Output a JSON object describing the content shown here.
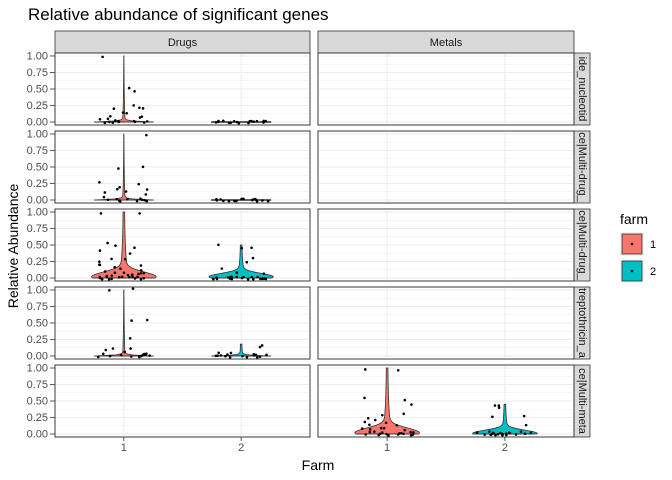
{
  "chart_data": {
    "type": "violin",
    "title": "Relative abundance of significant genes",
    "xlabel": "Farm",
    "ylabel": "Relative Abundance",
    "x_categories": [
      "1",
      "2"
    ],
    "y_ticks": [
      "0.00",
      "0.25",
      "0.50",
      "0.75",
      "1.00"
    ],
    "ylim": [
      0,
      1
    ],
    "columns": [
      "Drugs",
      "Metals"
    ],
    "row_labels": [
      "ide_nucleotid",
      "ce|Multi-drug_",
      "ce|Multi-drug_",
      "treptothricin_a",
      "ce|Multi-meta"
    ],
    "legend": {
      "title": "farm",
      "entries": [
        {
          "label": "1",
          "color": "#F8766D"
        },
        {
          "label": "2",
          "color": "#00BFC4"
        }
      ],
      "position": "right"
    },
    "panels": [
      {
        "row": 0,
        "col": 0,
        "farm1": {
          "points": [
            1.0,
            0.47,
            0.5,
            0.25,
            0.22,
            0.2,
            0.18,
            0.15,
            0.12,
            0.1,
            0.08,
            0.06,
            0.05,
            0.03,
            0.02,
            0.0,
            0.0,
            0.0,
            0.0,
            0.0,
            0.0,
            0.0,
            0.0,
            0.0
          ],
          "median": 0.0,
          "max": 1.0,
          "peak": 0.0,
          "shape": "spike"
        },
        "farm2": {
          "points": [
            0.0,
            0.0,
            0.0,
            0.0,
            0.0,
            0.0,
            0.0,
            0.0,
            0.0,
            0.0,
            0.0,
            0.0,
            0.0,
            0.0,
            0.0,
            0.0,
            0.0,
            0.0
          ],
          "median": 0.0,
          "max": 0.0,
          "peak": 0.0,
          "shape": "flat"
        }
      },
      {
        "row": 1,
        "col": 0,
        "farm1": {
          "points": [
            1.0,
            0.5,
            0.47,
            0.25,
            0.22,
            0.2,
            0.17,
            0.15,
            0.12,
            0.1,
            0.07,
            0.05,
            0.03,
            0.0,
            0.0,
            0.0,
            0.0,
            0.0,
            0.0,
            0.0,
            0.0,
            0.0
          ],
          "median": 0.0,
          "max": 1.0,
          "peak": 0.0,
          "shape": "spike"
        },
        "farm2": {
          "points": [
            0.0,
            0.0,
            0.0,
            0.0,
            0.0,
            0.0,
            0.0,
            0.0,
            0.0,
            0.0,
            0.0,
            0.0,
            0.0,
            0.0,
            0.0,
            0.0,
            0.0,
            0.0
          ],
          "median": 0.0,
          "max": 0.0,
          "peak": 0.0,
          "shape": "flat"
        }
      },
      {
        "row": 2,
        "col": 0,
        "farm1": {
          "points": [
            1.0,
            0.97,
            0.53,
            0.5,
            0.45,
            0.4,
            0.37,
            0.3,
            0.28,
            0.25,
            0.22,
            0.2,
            0.18,
            0.15,
            0.13,
            0.12,
            0.1,
            0.09,
            0.08,
            0.07,
            0.06,
            0.05,
            0.05,
            0.04,
            0.03,
            0.03,
            0.02,
            0.02,
            0.01,
            0.01,
            0.0,
            0.0,
            0.0,
            0.0,
            0.0,
            0.0,
            0.0,
            0.0,
            0.0,
            0.0
          ],
          "median": 0.05,
          "max": 1.0,
          "peak": 0.02,
          "shape": "violin"
        },
        "farm2": {
          "points": [
            0.52,
            0.48,
            0.45,
            0.3,
            0.25,
            0.15,
            0.1,
            0.05,
            0.03,
            0.02,
            0.01,
            0.0,
            0.0,
            0.0,
            0.0,
            0.0,
            0.0,
            0.0,
            0.0,
            0.0,
            0.0,
            0.0,
            0.0,
            0.0,
            0.0,
            0.0,
            0.0,
            0.0,
            0.0,
            0.0
          ],
          "median": 0.01,
          "max": 0.5,
          "peak": 0.02,
          "shape": "violin"
        }
      },
      {
        "row": 3,
        "col": 0,
        "farm1": {
          "points": [
            1.0,
            0.98,
            0.55,
            0.53,
            0.27,
            0.12,
            0.1,
            0.08,
            0.06,
            0.05,
            0.04,
            0.03,
            0.02,
            0.02,
            0.01,
            0.01,
            0.0,
            0.0,
            0.0,
            0.0,
            0.0,
            0.0
          ],
          "median": 0.0,
          "max": 1.0,
          "peak": 0.0,
          "shape": "spike"
        },
        "farm2": {
          "points": [
            0.18,
            0.15,
            0.05,
            0.03,
            0.02,
            0.01,
            0.01,
            0.0,
            0.0,
            0.0,
            0.0,
            0.0,
            0.0,
            0.0,
            0.0,
            0.0,
            0.0,
            0.0,
            0.0
          ],
          "median": 0.0,
          "max": 0.18,
          "peak": 0.0,
          "shape": "spike"
        }
      },
      {
        "row": 4,
        "col": 1,
        "farm1": {
          "points": [
            1.0,
            0.98,
            0.55,
            0.5,
            0.45,
            0.3,
            0.28,
            0.25,
            0.22,
            0.2,
            0.18,
            0.15,
            0.12,
            0.1,
            0.08,
            0.07,
            0.06,
            0.05,
            0.04,
            0.03,
            0.02,
            0.02,
            0.01,
            0.01,
            0.0,
            0.0,
            0.0,
            0.0,
            0.0,
            0.0,
            0.0,
            0.0,
            0.0,
            0.0
          ],
          "median": 0.03,
          "max": 1.0,
          "peak": 0.02,
          "shape": "violin"
        },
        "farm2": {
          "points": [
            0.45,
            0.43,
            0.4,
            0.28,
            0.25,
            0.15,
            0.05,
            0.02,
            0.01,
            0.0,
            0.0,
            0.0,
            0.0,
            0.0,
            0.0,
            0.0,
            0.0,
            0.0,
            0.0,
            0.0,
            0.0,
            0.0,
            0.0,
            0.0,
            0.0,
            0.0
          ],
          "median": 0.01,
          "max": 0.45,
          "peak": 0.01,
          "shape": "violin"
        }
      }
    ]
  }
}
